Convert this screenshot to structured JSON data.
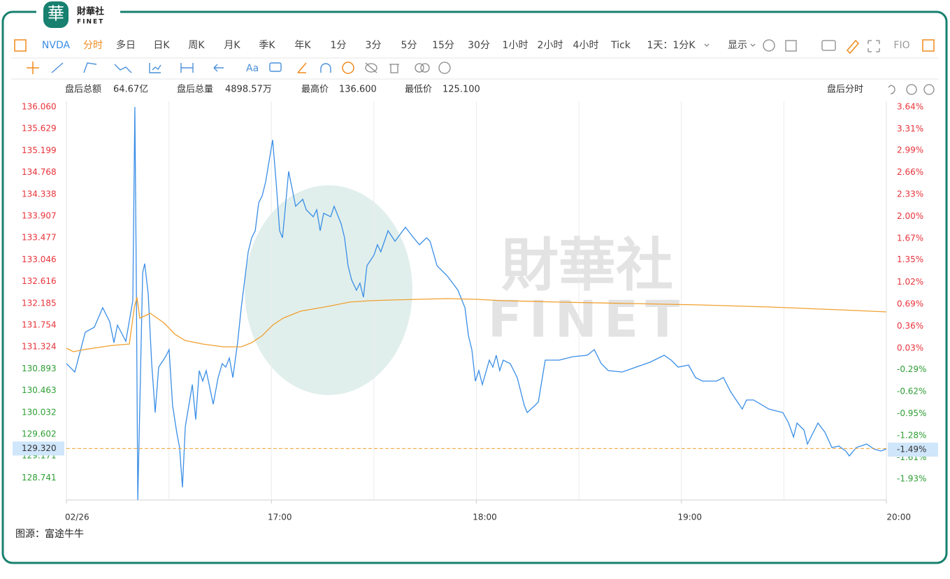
{
  "logo": {
    "mark": "華",
    "name": "財華社",
    "latin": "FINET"
  },
  "toolbar": {
    "tabs": [
      "NVDA",
      "分时",
      "多日",
      "日K",
      "周K",
      "月K",
      "季K",
      "年K",
      "1分",
      "3分",
      "5分",
      "15分",
      "30分",
      "1小时",
      "2小时",
      "4小时",
      "Tick",
      "1天：1分K",
      "显示",
      "FIO"
    ],
    "font_tool": "Aa"
  },
  "stats": {
    "items": [
      [
        "盘后总额",
        "64.67亿"
      ],
      [
        "盘后总量",
        "4898.57万"
      ],
      [
        "最高价",
        "136.600"
      ],
      [
        "最低价",
        "125.100"
      ]
    ],
    "mode": "盘后分时"
  },
  "watermark": {
    "brand": "財華社",
    "latin": "FINET"
  },
  "source": "图源：富途牛牛",
  "chart_data": {
    "type": "line",
    "xlim": [
      16,
      20
    ],
    "xticks": [
      {
        "value": 16,
        "label": "02/26"
      },
      {
        "value": 17,
        "label": "17:00"
      },
      {
        "value": 18,
        "label": "18:00"
      },
      {
        "value": 19,
        "label": "19:00"
      },
      {
        "value": 20,
        "label": "20:00"
      }
    ],
    "xgrid": [
      16.5,
      17,
      17.5,
      18,
      18.5,
      19,
      19.5
    ],
    "ylim": [
      128.304,
      136.17
    ],
    "yticks": [
      {
        "value": 136.06,
        "label": "136.060"
      },
      135.629,
      135.199,
      134.768,
      134.338,
      133.907,
      133.477,
      133.046,
      132.616,
      132.185,
      131.754,
      131.324,
      130.893,
      130.463,
      130.032,
      129.602,
      129.171,
      128.741
    ],
    "y2lim": [
      -2.244,
      3.724
    ],
    "y2ticks": [
      {
        "value": 3.64,
        "label": "3.64%"
      },
      {
        "value": 3.31,
        "label": "3.31%"
      },
      {
        "value": 2.99,
        "label": "2.99%"
      },
      {
        "value": 2.66,
        "label": "2.66%"
      },
      {
        "value": 2.33,
        "label": "2.33%"
      },
      {
        "value": 2.0,
        "label": "2.00%"
      },
      {
        "value": 1.67,
        "label": "1.67%"
      },
      {
        "value": 1.35,
        "label": "1.35%"
      },
      {
        "value": 1.02,
        "label": "1.02%"
      },
      {
        "value": 0.69,
        "label": "0.69%"
      },
      {
        "value": 0.36,
        "label": "0.36%"
      },
      {
        "value": 0.03,
        "label": "0.03%"
      },
      {
        "value": -0.29,
        "label": "-0.29%"
      },
      {
        "value": -0.62,
        "label": "-0.62%"
      },
      {
        "value": -0.95,
        "label": "-0.95%"
      },
      {
        "value": -1.28,
        "label": "-1.28%"
      },
      {
        "value": -1.61,
        "label": "-1.61%"
      },
      {
        "value": -1.93,
        "label": "-1.93%"
      }
    ],
    "up_color": "#e8333a",
    "down_color": "#2e9e34",
    "reference_line": {
      "value": 129.32,
      "label": "129.320",
      "pct": {
        "value": -1.49,
        "label": "-1.49%"
      },
      "color": "#f0a030"
    },
    "series": [
      {
        "color": "#3a8ee6",
        "x": [
          16.0,
          16.041,
          16.092,
          16.136,
          16.177,
          16.211,
          16.232,
          16.249,
          16.29,
          16.324,
          16.334,
          16.341,
          16.348,
          16.372,
          16.382,
          16.399,
          16.416,
          16.433,
          16.45,
          16.484,
          16.501,
          16.518,
          16.539,
          16.552,
          16.566,
          16.58,
          16.597,
          16.614,
          16.631,
          16.648,
          16.665,
          16.682,
          16.716,
          16.74,
          16.76,
          16.777,
          16.795,
          16.812,
          16.835,
          16.853,
          16.87,
          16.887,
          16.904,
          16.921,
          16.938,
          16.955,
          16.972,
          16.989,
          17.006,
          17.023,
          17.04,
          17.054,
          17.067,
          17.084,
          17.101,
          17.118,
          17.153,
          17.17,
          17.204,
          17.221,
          17.238,
          17.255,
          17.289,
          17.306,
          17.34,
          17.357,
          17.374,
          17.391,
          17.415,
          17.432,
          17.449,
          17.466,
          17.5,
          17.517,
          17.534,
          17.569,
          17.603,
          17.654,
          17.688,
          17.722,
          17.757,
          17.774,
          17.808,
          17.859,
          17.91,
          17.944,
          17.961,
          17.978,
          17.995,
          18.012,
          18.029,
          18.063,
          18.08,
          18.097,
          18.114,
          18.131,
          18.165,
          18.199,
          18.234,
          18.248,
          18.285,
          18.302,
          18.319,
          18.336,
          18.404,
          18.472,
          18.541,
          18.575,
          18.609,
          18.643,
          18.711,
          18.779,
          18.847,
          18.916,
          18.95,
          18.984,
          19.035,
          19.069,
          19.103,
          19.171,
          19.205,
          19.24,
          19.274,
          19.297,
          19.318,
          19.352,
          19.427,
          19.495,
          19.523,
          19.547,
          19.564,
          19.598,
          19.615,
          19.649,
          19.666,
          19.7,
          19.734,
          19.768,
          19.802,
          19.819,
          19.853,
          19.904,
          19.939,
          19.973,
          20.0
        ],
        "values": [
          130.995,
          130.829,
          131.616,
          131.713,
          132.099,
          131.823,
          131.409,
          131.754,
          131.437,
          132.237,
          136.06,
          132.651,
          128.304,
          132.789,
          132.968,
          132.375,
          130.995,
          130.029,
          130.926,
          131.133,
          131.271,
          130.167,
          129.615,
          129.339,
          128.552,
          129.753,
          130.167,
          130.581,
          129.891,
          130.857,
          130.65,
          130.857,
          130.195,
          130.719,
          130.995,
          130.926,
          131.105,
          130.719,
          131.409,
          132.099,
          132.651,
          133.203,
          133.479,
          133.617,
          134.169,
          134.307,
          134.583,
          134.997,
          135.411,
          134.583,
          133.617,
          133.479,
          134.031,
          134.79,
          134.445,
          134.1,
          134.238,
          134.031,
          133.893,
          134.031,
          133.617,
          133.962,
          133.893,
          134.1,
          133.755,
          133.479,
          132.927,
          132.651,
          132.444,
          132.582,
          132.306,
          132.927,
          133.134,
          133.341,
          133.203,
          133.617,
          133.41,
          133.686,
          133.507,
          133.341,
          133.479,
          133.41,
          132.927,
          132.72,
          132.444,
          132.099,
          131.547,
          131.271,
          130.65,
          130.857,
          130.581,
          131.064,
          130.926,
          131.161,
          130.857,
          131.064,
          130.995,
          130.719,
          130.167,
          130.029,
          130.167,
          130.236,
          130.65,
          131.064,
          131.064,
          131.133,
          131.161,
          131.271,
          130.995,
          130.857,
          130.829,
          130.926,
          131.023,
          131.161,
          131.064,
          130.926,
          130.967,
          130.719,
          130.65,
          130.65,
          130.719,
          130.443,
          130.236,
          130.098,
          130.277,
          130.277,
          130.098,
          130.029,
          129.822,
          129.546,
          129.822,
          129.684,
          129.408,
          129.684,
          129.822,
          129.643,
          129.339,
          129.367,
          129.27,
          129.173,
          129.339,
          129.408,
          129.311,
          129.27,
          129.311
        ]
      },
      {
        "color": "#f0a030",
        "x": [
          16.0,
          16.034,
          16.085,
          16.153,
          16.222,
          16.307,
          16.331,
          16.344,
          16.358,
          16.409,
          16.443,
          16.477,
          16.529,
          16.58,
          16.665,
          16.767,
          16.853,
          16.904,
          16.955,
          17.006,
          17.057,
          17.142,
          17.279,
          17.381,
          17.483,
          17.586,
          17.722,
          17.859,
          17.995,
          18.131,
          18.404,
          18.745,
          19.086,
          19.427,
          19.768,
          20.0
        ],
        "values": [
          131.299,
          131.23,
          131.271,
          131.312,
          131.354,
          131.381,
          132.099,
          132.306,
          131.892,
          131.989,
          131.892,
          131.795,
          131.575,
          131.45,
          131.381,
          131.326,
          131.326,
          131.409,
          131.547,
          131.754,
          131.892,
          132.03,
          132.127,
          132.209,
          132.237,
          132.251,
          132.265,
          132.278,
          132.265,
          132.237,
          132.209,
          132.182,
          132.154,
          132.113,
          132.058,
          132.016
        ]
      }
    ]
  }
}
